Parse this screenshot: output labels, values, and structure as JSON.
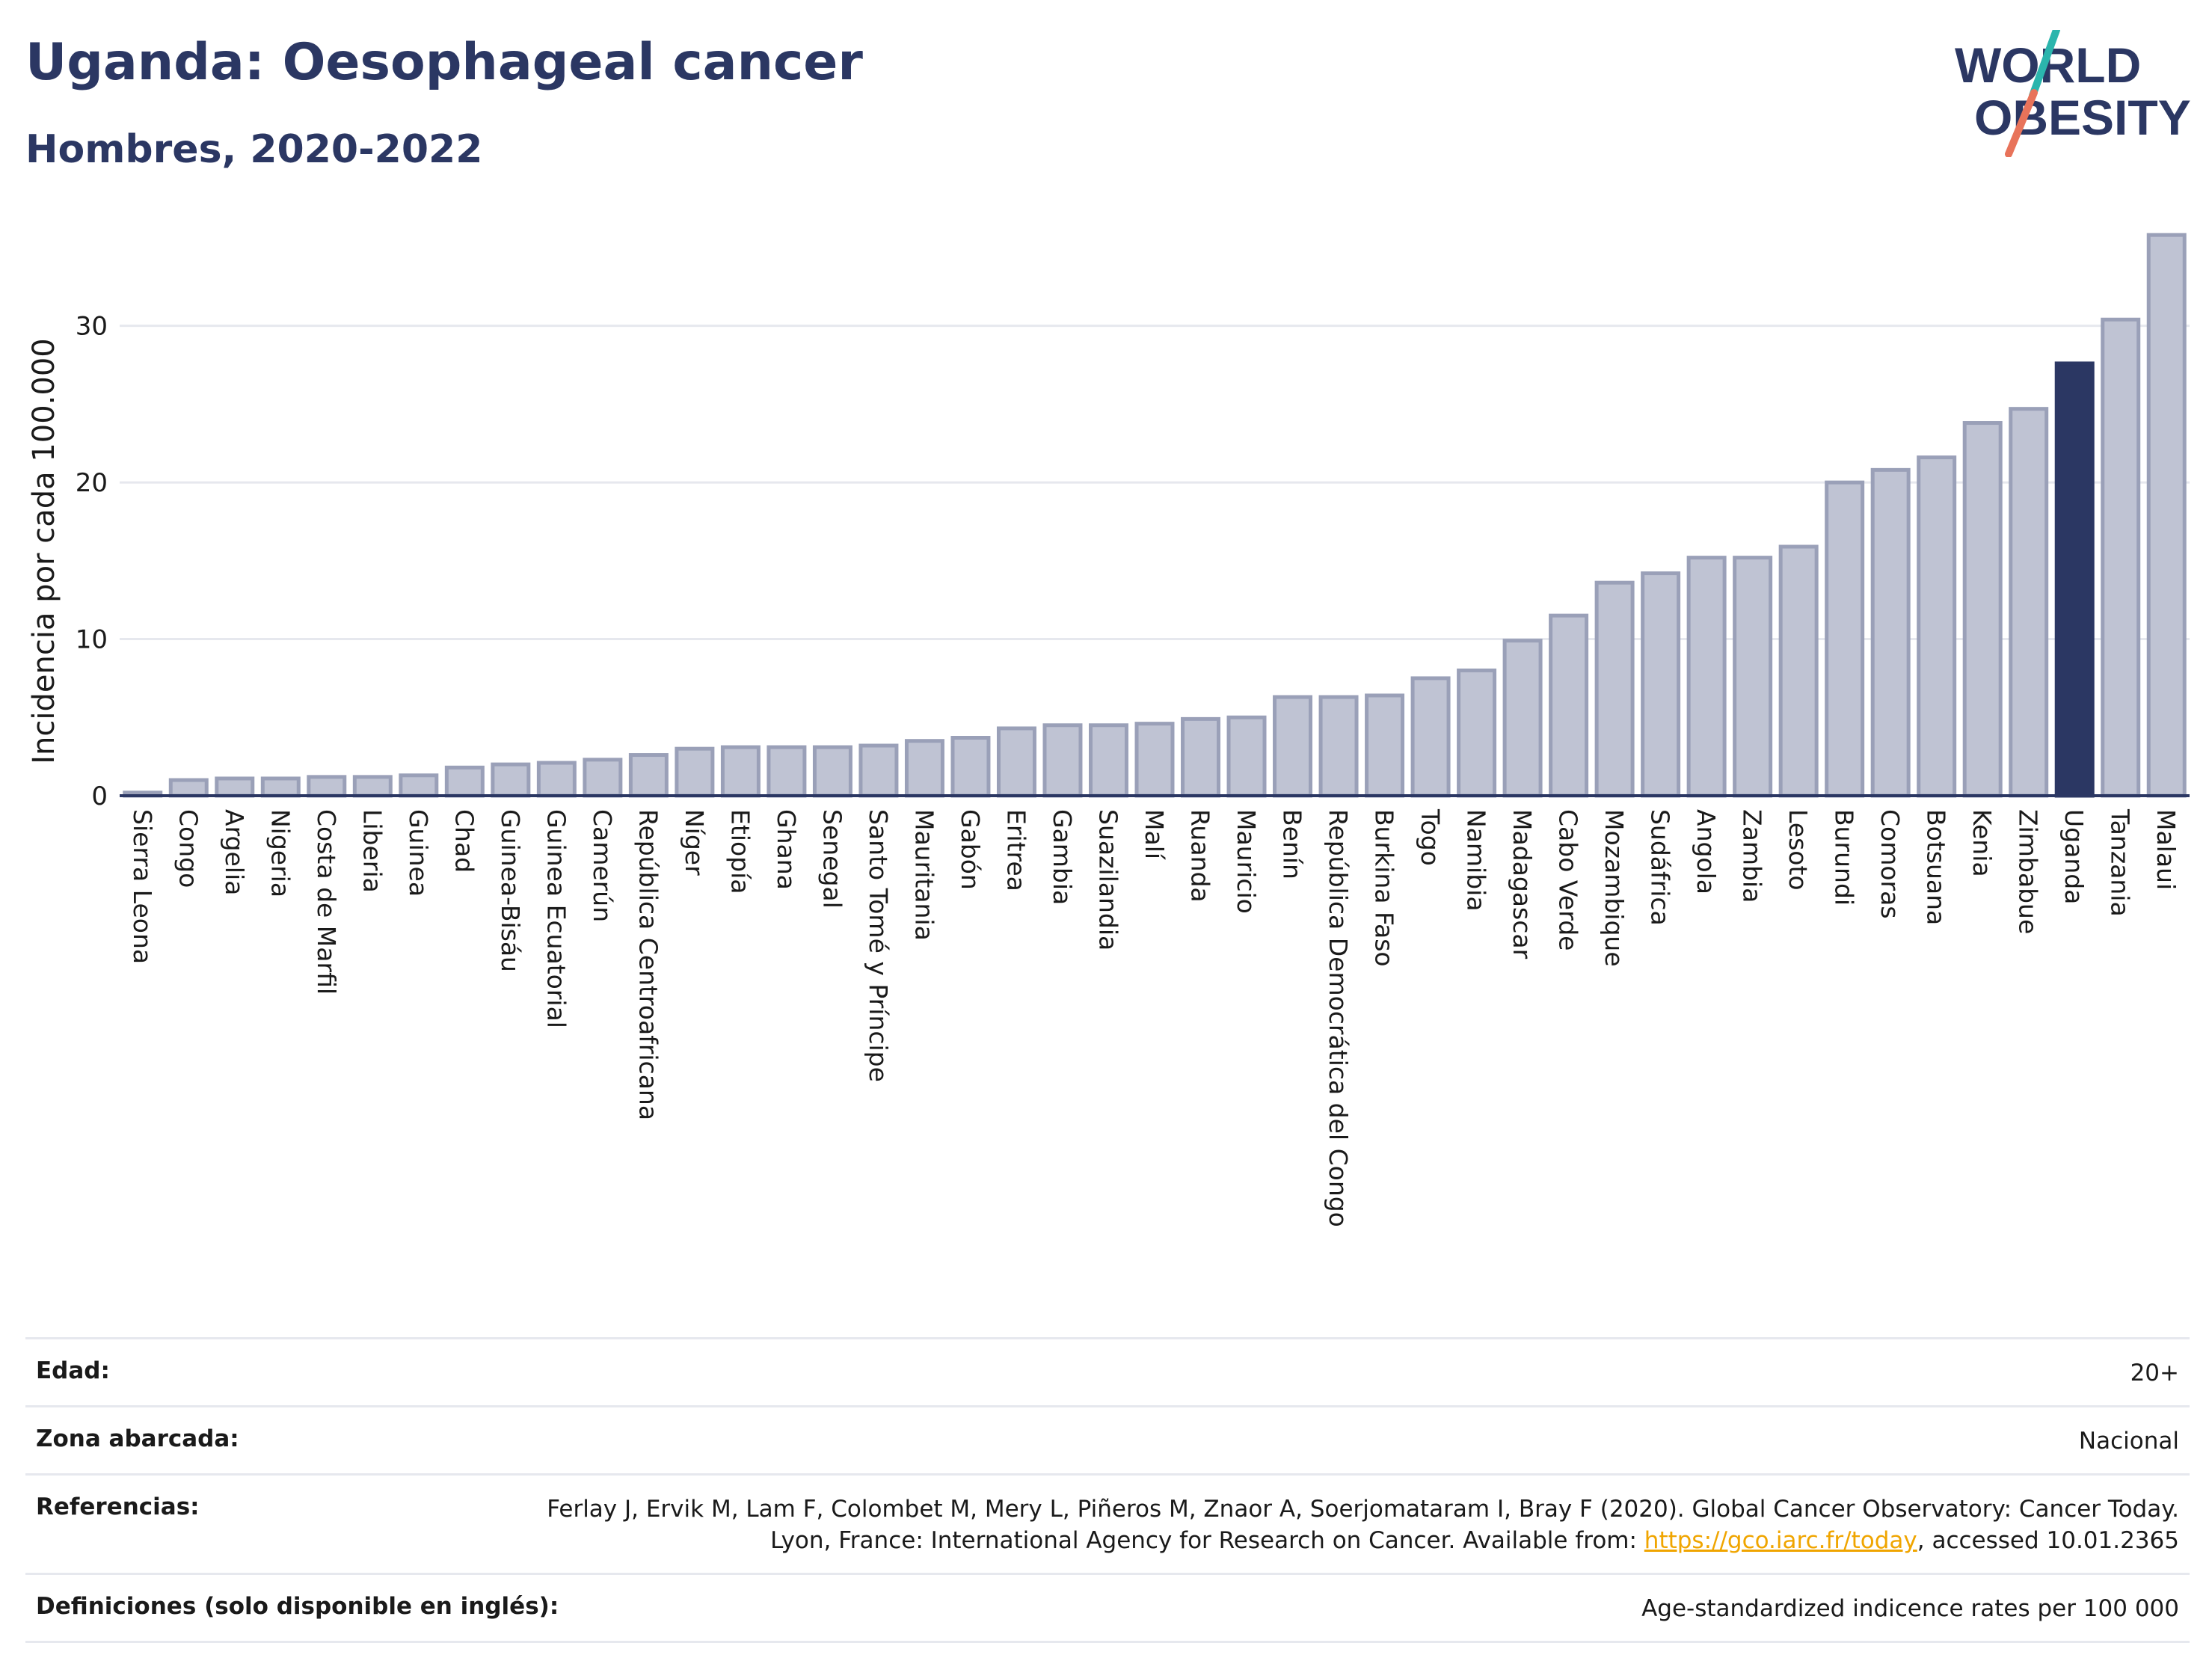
{
  "header": {
    "title": "Uganda: Oesophageal cancer",
    "subtitle": "Hombres, 2020-2022"
  },
  "logo": {
    "line1": "WORLD",
    "line2": "OBESITY",
    "colors": {
      "text": "#2b3763",
      "slash_teal": "#2bb5ad",
      "slash_red": "#e8735a"
    }
  },
  "colors": {
    "bar_fill": "#bfc3d3",
    "bar_stroke": "#9aa0b8",
    "highlight_fill": "#2b3763",
    "grid": "#e6e8ee",
    "axis": "#2b3763"
  },
  "chart_data": {
    "type": "bar",
    "title": "Uganda: Oesophageal cancer",
    "subtitle": "Hombres, 2020-2022",
    "ylabel": "Incidencia por cada 100.000",
    "xlabel": "",
    "ylim": [
      0,
      36
    ],
    "yticks": [
      0,
      10,
      20,
      30
    ],
    "grid": true,
    "highlight": "Uganda",
    "categories": [
      "Sierra Leona",
      "Congo",
      "Argelia",
      "Nigeria",
      "Costa de Marfil",
      "Liberia",
      "Guinea",
      "Chad",
      "Guinea-Bisáu",
      "Guinea Ecuatorial",
      "Camerún",
      "República Centroafricana",
      "Níger",
      "Etiopía",
      "Ghana",
      "Senegal",
      "Santo Tomé y Príncipe",
      "Mauritania",
      "Gabón",
      "Eritrea",
      "Gambia",
      "Suazilandia",
      "Malí",
      "Ruanda",
      "Mauricio",
      "Benín",
      "República Democrática del Congo",
      "Burkina Faso",
      "Togo",
      "Namibia",
      "Madagascar",
      "Cabo Verde",
      "Mozambique",
      "Sudáfrica",
      "Angola",
      "Zambia",
      "Lesoto",
      "Burundi",
      "Comoras",
      "Botsuana",
      "Kenia",
      "Zimbabue",
      "Uganda",
      "Tanzania",
      "Malaui"
    ],
    "values": [
      0.2,
      1.0,
      1.1,
      1.1,
      1.2,
      1.2,
      1.3,
      1.8,
      2.0,
      2.1,
      2.3,
      2.6,
      3.0,
      3.1,
      3.1,
      3.1,
      3.2,
      3.5,
      3.7,
      4.3,
      4.5,
      4.5,
      4.6,
      4.9,
      5.0,
      6.3,
      6.3,
      6.4,
      7.5,
      8.0,
      9.9,
      11.5,
      13.6,
      14.2,
      15.2,
      15.2,
      15.9,
      20.0,
      20.8,
      21.6,
      23.8,
      24.7,
      27.6,
      30.4,
      35.8
    ]
  },
  "meta": {
    "age_label": "Edad:",
    "age_value": "20+",
    "area_label": "Zona abarcada:",
    "area_value": "Nacional",
    "refs_label": "Referencias:",
    "refs_text_1": "Ferlay J, Ervik M, Lam F, Colombet M, Mery L, Piñeros M, Znaor A, Soerjomataram I, Bray F (2020). Global Cancer Observatory: Cancer Today. Lyon, France: International Agency for Research on Cancer. Available from: ",
    "refs_link": "https://gco.iarc.fr/today",
    "refs_text_2": ", accessed 10.01.2365",
    "defs_label": "Definiciones (solo disponible en inglés):",
    "defs_value": "Age-standardized indicence rates per 100 000"
  }
}
